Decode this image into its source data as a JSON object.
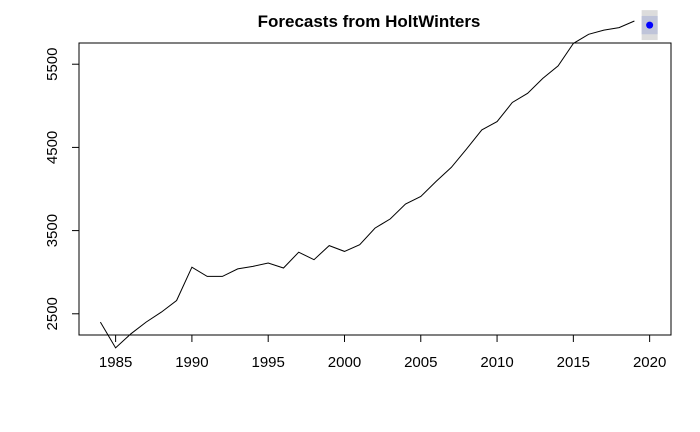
{
  "chart_data": {
    "type": "line",
    "title": "Forecasts from HoltWinters",
    "xlabel": "",
    "ylabel": "",
    "xlim": [
      1982.6,
      2021.4
    ],
    "ylim": [
      2245,
      5755
    ],
    "x_ticks": [
      1985,
      1990,
      1995,
      2000,
      2005,
      2010,
      2015,
      2020
    ],
    "y_ticks": [
      2500,
      3500,
      4500,
      5500
    ],
    "y_tick_labels": [
      "2500",
      "3500",
      "4500",
      "5500"
    ],
    "grid": false,
    "series": [
      {
        "x": [
          1984,
          1985,
          1986,
          1987,
          1988,
          1989,
          1990,
          1991,
          1992,
          1993,
          1994,
          1995,
          1996,
          1997,
          1998,
          1999,
          2000,
          2001,
          2002,
          2003,
          2004,
          2005,
          2006,
          2007,
          2008,
          2009,
          2010,
          2011,
          2012,
          2013,
          2014,
          2015,
          2016,
          2017,
          2018,
          2019
        ],
        "values": [
          2400,
          2090,
          2260,
          2400,
          2520,
          2660,
          3060,
          2950,
          2950,
          3040,
          3070,
          3110,
          3050,
          3240,
          3150,
          3320,
          3250,
          3330,
          3530,
          3640,
          3820,
          3910,
          4090,
          4260,
          4480,
          4710,
          4810,
          5040,
          5150,
          5330,
          5480,
          5750,
          5860,
          5910,
          5940,
          6020
        ],
        "color": "#000000"
      }
    ],
    "forecast": {
      "x": 2020,
      "point": 5970,
      "lower80": 5860,
      "upper80": 6080,
      "lower95": 5790,
      "upper95": 6150,
      "point_color": "#0000ff",
      "band80_color": "#bfc4d9",
      "band95_color": "#dcdcdc"
    }
  }
}
